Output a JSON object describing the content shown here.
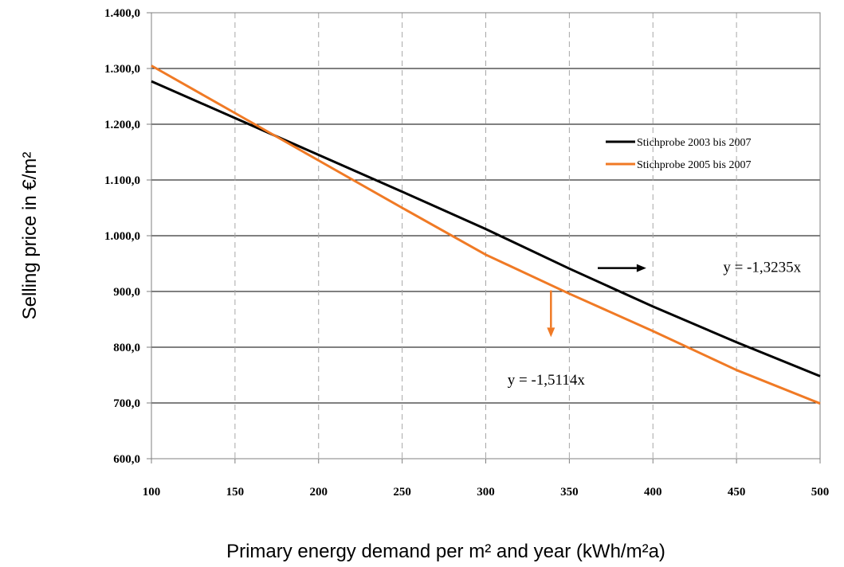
{
  "chart_data": {
    "type": "line",
    "xlabel": "Primary energy demand per m² and year (kWh/m²a)",
    "ylabel": "Selling price in €/m²",
    "xlim": [
      100,
      500
    ],
    "ylim": [
      600,
      1400
    ],
    "x_ticks": [
      "100",
      "150",
      "200",
      "250",
      "300",
      "350",
      "400",
      "450",
      "500"
    ],
    "y_ticks": [
      "600,0",
      "700,0",
      "800,0",
      "900,0",
      "1.000,0",
      "1.100,0",
      "1.200,0",
      "1.300,0",
      "1.400,0"
    ],
    "grid": {
      "horizontal": "solid",
      "vertical": "dashed"
    },
    "legend_position": "right",
    "series": [
      {
        "name": "Stichprobe 2003 bis 2007",
        "color": "#000000",
        "x": [
          100,
          150,
          200,
          250,
          300,
          350,
          400,
          450,
          500
        ],
        "y": [
          1277,
          1211,
          1145,
          1079,
          1012,
          941,
          873,
          809,
          748
        ]
      },
      {
        "name": "Stichprobe 2005 bis 2007",
        "color": "#f07a25",
        "x": [
          100,
          150,
          200,
          250,
          300,
          350,
          400,
          450,
          500
        ],
        "y": [
          1305,
          1220,
          1135,
          1050,
          966,
          896,
          829,
          759,
          699
        ]
      }
    ],
    "annotations": [
      {
        "text": "y = -1,3235x",
        "x": 442,
        "y": 935
      },
      {
        "text": "y = -1,5114x",
        "x": 313,
        "y": 733
      }
    ],
    "arrows": [
      {
        "color": "#000000",
        "from": [
          367,
          942
        ],
        "to": [
          396,
          942
        ]
      },
      {
        "color": "#f07a25",
        "from": [
          339,
          902
        ],
        "to": [
          339,
          818
        ]
      }
    ]
  }
}
